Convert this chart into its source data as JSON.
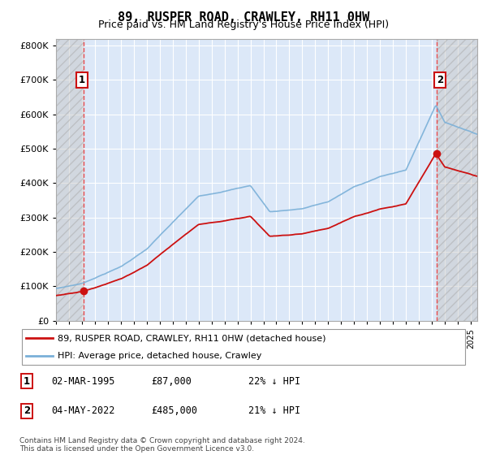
{
  "title": "89, RUSPER ROAD, CRAWLEY, RH11 0HW",
  "subtitle": "Price paid vs. HM Land Registry's House Price Index (HPI)",
  "title_fontsize": 11,
  "subtitle_fontsize": 9,
  "ylim": [
    0,
    820000
  ],
  "yticks": [
    0,
    100000,
    200000,
    300000,
    400000,
    500000,
    600000,
    700000,
    800000
  ],
  "ytick_labels": [
    "£0",
    "£100K",
    "£200K",
    "£300K",
    "£400K",
    "£500K",
    "£600K",
    "£700K",
    "£800K"
  ],
  "background_color": "#ffffff",
  "plot_bg_color": "#dce8f8",
  "grid_color": "#ffffff",
  "hatch_color": "#c0c0c0",
  "sale1_date": 1995.16,
  "sale1_price": 87000,
  "sale1_label": "1",
  "sale2_date": 2022.34,
  "sale2_price": 485000,
  "sale2_label": "2",
  "xlim_start": 1993,
  "xlim_end": 2025.5,
  "legend_line1": "89, RUSPER ROAD, CRAWLEY, RH11 0HW (detached house)",
  "legend_line2": "HPI: Average price, detached house, Crawley",
  "note": "Contains HM Land Registry data © Crown copyright and database right 2024.\nThis data is licensed under the Open Government Licence v3.0.",
  "table": [
    {
      "label": "1",
      "date": "02-MAR-1995",
      "price": "£87,000",
      "hpi": "22% ↓ HPI"
    },
    {
      "label": "2",
      "date": "04-MAY-2022",
      "price": "£485,000",
      "hpi": "21% ↓ HPI"
    }
  ]
}
